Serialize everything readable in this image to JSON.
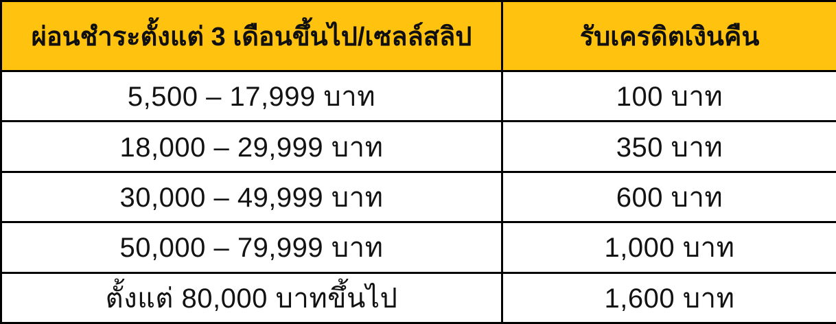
{
  "table": {
    "header": {
      "range_label": "ผ่อนชำระตั้งแต่ 3 เดือนขึ้นไป/เซลล์สลิป",
      "cashback_label": "รับเครดิตเงินคืน"
    },
    "rows": [
      {
        "range": "5,500 – 17,999 บาท",
        "cashback": "100 บาท"
      },
      {
        "range": "18,000 – 29,999 บาท",
        "cashback": "350 บาท"
      },
      {
        "range": "30,000 – 49,999 บาท",
        "cashback": "600 บาท"
      },
      {
        "range": "50,000 – 79,999 บาท",
        "cashback": "1,000 บาท"
      },
      {
        "range": "ตั้งแต่ 80,000 บาทขึ้นไป",
        "cashback": "1,600 บาท"
      }
    ],
    "colors": {
      "header_bg": "#FFC20E",
      "border": "#000000",
      "body_bg": "#FFFFFF",
      "text": "#131313"
    }
  },
  "chart_data": {
    "type": "table",
    "title": "",
    "columns": [
      "ผ่อนชำระตั้งแต่ 3 เดือนขึ้นไป/เซลล์สลิป",
      "รับเครดิตเงินคืน"
    ],
    "rows": [
      [
        "5,500 – 17,999 บาท",
        "100 บาท"
      ],
      [
        "18,000 – 29,999 บาท",
        "350 บาท"
      ],
      [
        "30,000 – 49,999 บาท",
        "600 บาท"
      ],
      [
        "50,000 – 79,999 บาท",
        "1,000 บาท"
      ],
      [
        "ตั้งแต่ 80,000 บาทขึ้นไป",
        "1,600 บาท"
      ]
    ],
    "tiers": [
      {
        "min": 5500,
        "max": 17999,
        "cashback_baht": 100
      },
      {
        "min": 18000,
        "max": 29999,
        "cashback_baht": 350
      },
      {
        "min": 30000,
        "max": 49999,
        "cashback_baht": 600
      },
      {
        "min": 50000,
        "max": 79999,
        "cashback_baht": 1000
      },
      {
        "min": 80000,
        "max": null,
        "cashback_baht": 1600
      }
    ]
  }
}
